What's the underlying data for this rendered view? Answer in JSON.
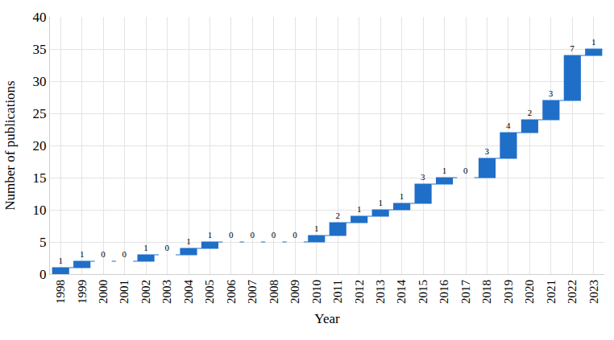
{
  "chart_data": {
    "type": "waterfall",
    "x_label": "Year",
    "y_label": "Number of publications",
    "categories": [
      "1998",
      "1999",
      "2000",
      "2001",
      "2002",
      "2003",
      "2004",
      "2005",
      "2006",
      "2007",
      "2008",
      "2009",
      "2010",
      "2011",
      "2012",
      "2013",
      "2014",
      "2015",
      "2016",
      "2017",
      "2018",
      "2019",
      "2020",
      "2021",
      "2022",
      "2023"
    ],
    "values": [
      1,
      1,
      0,
      0,
      1,
      0,
      1,
      1,
      0,
      0,
      0,
      0,
      1,
      2,
      1,
      1,
      1,
      3,
      1,
      0,
      3,
      4,
      2,
      3,
      7,
      1
    ],
    "color": "#1f6fc8",
    "ylim": [
      0,
      40
    ],
    "yticks": [
      0,
      5,
      10,
      15,
      20,
      25,
      30,
      35,
      40
    ],
    "grid": true,
    "data_labels": true
  }
}
